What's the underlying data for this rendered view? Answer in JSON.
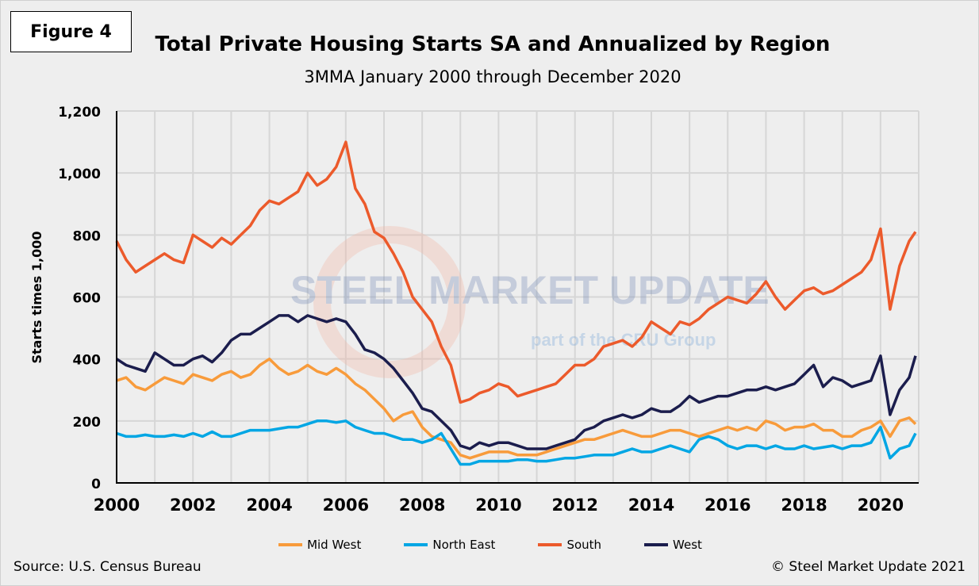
{
  "figure_label": "Figure 4",
  "source": "Source: U.S. Census Bureau",
  "copyright": "© Steel Market Update 2021",
  "watermark": {
    "line1": "STEEL MARKET UPDATE",
    "line2": "part of the CRU Group"
  },
  "chart_data": {
    "type": "line",
    "title": "Total Private Housing Starts SA and Annualized by Region",
    "subtitle": "3MMA January 2000 through December 2020",
    "xlabel": "",
    "ylabel": "Starts times 1,000",
    "xlim": [
      2000,
      2021
    ],
    "ylim": [
      0,
      1200
    ],
    "x_ticks": [
      "2000",
      "2002",
      "2004",
      "2006",
      "2008",
      "2010",
      "2012",
      "2014",
      "2016",
      "2018",
      "2020"
    ],
    "y_ticks": [
      "0",
      "200",
      "400",
      "600",
      "800",
      "1,000",
      "1,200"
    ],
    "grid": "vertical yearly and horizontal",
    "legend_position": "bottom",
    "x_start": 2000,
    "x_step_years": 0.25,
    "x_last": 2020.917,
    "series": [
      {
        "name": "Mid West",
        "color": "#f89b3b",
        "values": [
          330,
          340,
          310,
          300,
          320,
          340,
          330,
          320,
          350,
          340,
          330,
          350,
          360,
          340,
          350,
          380,
          400,
          370,
          350,
          360,
          380,
          360,
          350,
          370,
          350,
          320,
          300,
          270,
          240,
          200,
          220,
          230,
          180,
          150,
          140,
          130,
          90,
          80,
          90,
          100,
          100,
          100,
          90,
          90,
          90,
          100,
          110,
          120,
          130,
          140,
          140,
          150,
          160,
          170,
          160,
          150,
          150,
          160,
          170,
          170,
          160,
          150,
          160,
          170,
          180,
          170,
          180,
          170,
          200,
          190,
          170,
          180,
          180,
          190,
          170,
          170,
          150,
          150,
          170,
          180,
          200,
          150,
          200,
          210,
          190
        ]
      },
      {
        "name": "North East",
        "color": "#00a6e4",
        "values": [
          160,
          150,
          150,
          155,
          150,
          150,
          155,
          150,
          160,
          150,
          165,
          150,
          150,
          160,
          170,
          170,
          170,
          175,
          180,
          180,
          190,
          200,
          200,
          195,
          200,
          180,
          170,
          160,
          160,
          150,
          140,
          140,
          130,
          140,
          160,
          110,
          60,
          60,
          70,
          70,
          70,
          70,
          75,
          75,
          70,
          70,
          75,
          80,
          80,
          85,
          90,
          90,
          90,
          100,
          110,
          100,
          100,
          110,
          120,
          110,
          100,
          140,
          150,
          140,
          120,
          110,
          120,
          120,
          110,
          120,
          110,
          110,
          120,
          110,
          115,
          120,
          110,
          120,
          120,
          130,
          180,
          80,
          110,
          120,
          160
        ]
      },
      {
        "name": "South",
        "color": "#ec5a2b",
        "values": [
          780,
          720,
          680,
          700,
          720,
          740,
          720,
          710,
          800,
          780,
          760,
          790,
          770,
          800,
          830,
          880,
          910,
          900,
          920,
          940,
          1000,
          960,
          980,
          1020,
          1100,
          950,
          900,
          810,
          790,
          740,
          680,
          600,
          560,
          520,
          440,
          380,
          260,
          270,
          290,
          300,
          320,
          310,
          280,
          290,
          300,
          310,
          320,
          350,
          380,
          380,
          400,
          440,
          450,
          460,
          440,
          470,
          520,
          500,
          480,
          520,
          510,
          530,
          560,
          580,
          600,
          590,
          580,
          610,
          650,
          600,
          560,
          590,
          620,
          630,
          610,
          620,
          640,
          660,
          680,
          720,
          820,
          560,
          700,
          780,
          810
        ]
      },
      {
        "name": "West",
        "color": "#1b1d4d",
        "values": [
          400,
          380,
          370,
          360,
          420,
          400,
          380,
          380,
          400,
          410,
          390,
          420,
          460,
          480,
          480,
          500,
          520,
          540,
          540,
          520,
          540,
          530,
          520,
          530,
          520,
          480,
          430,
          420,
          400,
          370,
          330,
          290,
          240,
          230,
          200,
          170,
          120,
          110,
          130,
          120,
          130,
          130,
          120,
          110,
          110,
          110,
          120,
          130,
          140,
          170,
          180,
          200,
          210,
          220,
          210,
          220,
          240,
          230,
          230,
          250,
          280,
          260,
          270,
          280,
          280,
          290,
          300,
          300,
          310,
          300,
          310,
          320,
          350,
          380,
          310,
          340,
          330,
          310,
          320,
          330,
          410,
          220,
          300,
          340,
          410
        ]
      }
    ]
  }
}
